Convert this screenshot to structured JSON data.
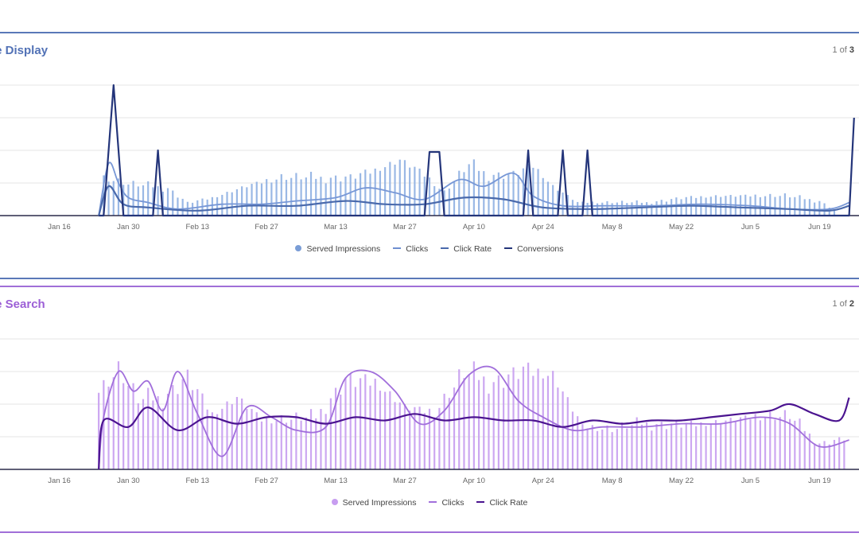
{
  "panels": [
    {
      "title": "le Display",
      "pager": {
        "current": "1",
        "sep": " of ",
        "total": "3"
      },
      "legend": [
        {
          "label": "Served Impressions",
          "kind": "dot",
          "color": "#7a9dd6"
        },
        {
          "label": "Clicks",
          "kind": "dash",
          "color": "#6f8fd0"
        },
        {
          "label": "Click Rate",
          "kind": "dash",
          "color": "#4a6aac"
        },
        {
          "label": "Conversions",
          "kind": "dash",
          "color": "#24357a"
        }
      ]
    },
    {
      "title": "le Search",
      "pager": {
        "current": "1",
        "sep": " of ",
        "total": "2"
      },
      "legend": [
        {
          "label": "Served Impressions",
          "kind": "dot",
          "color": "#c79df0"
        },
        {
          "label": "Clicks",
          "kind": "dash",
          "color": "#a16fdb"
        },
        {
          "label": "Click Rate",
          "kind": "dash",
          "color": "#4b1490"
        }
      ]
    }
  ],
  "chart_data": [
    {
      "type": "bar",
      "title": "le Display",
      "x_ticks": [
        "Jan 16",
        "Jan 30",
        "Feb 13",
        "Feb 27",
        "Mar 13",
        "Mar 27",
        "Apr 10",
        "Apr 24",
        "May 8",
        "May 22",
        "Jun 5",
        "Jun 19"
      ],
      "ylim": [
        0,
        4
      ],
      "grid": true,
      "legend_position": "bottom",
      "series": [
        {
          "name": "Served Impressions",
          "type": "bar",
          "color": "#8fb0e2",
          "points": [
            [
              21,
              1.15
            ],
            [
              26,
              0.95
            ],
            [
              34,
              0.85
            ],
            [
              38,
              0.4
            ],
            [
              43,
              0.55
            ],
            [
              50,
              0.9
            ],
            [
              57,
              1.15
            ],
            [
              64,
              1.15
            ],
            [
              71,
              1.2
            ],
            [
              76,
              1.4
            ],
            [
              81,
              1.7
            ],
            [
              85,
              1.35
            ],
            [
              90,
              0.7
            ],
            [
              95,
              1.55
            ],
            [
              99,
              1.25
            ],
            [
              104,
              1.3
            ],
            [
              108,
              1.55
            ],
            [
              112,
              0.9
            ],
            [
              117,
              0.4
            ],
            [
              124,
              0.4
            ],
            [
              131,
              0.4
            ],
            [
              138,
              0.55
            ],
            [
              145,
              0.6
            ],
            [
              152,
              0.6
            ],
            [
              159,
              0.6
            ],
            [
              166,
              0.45
            ],
            [
              170,
              0.1
            ]
          ]
        },
        {
          "name": "Clicks",
          "type": "line",
          "color": "#7797d6",
          "points": [
            [
              20,
              0
            ],
            [
              22,
              1.6
            ],
            [
              24,
              1.0
            ],
            [
              26,
              0.55
            ],
            [
              30,
              0.4
            ],
            [
              36,
              0.2
            ],
            [
              45,
              0.35
            ],
            [
              53,
              0.35
            ],
            [
              60,
              0.45
            ],
            [
              68,
              0.55
            ],
            [
              74,
              0.85
            ],
            [
              80,
              0.7
            ],
            [
              86,
              0.5
            ],
            [
              93,
              1.1
            ],
            [
              98,
              0.9
            ],
            [
              104,
              1.3
            ],
            [
              108,
              0.6
            ],
            [
              114,
              0.3
            ],
            [
              122,
              0.3
            ],
            [
              132,
              0.3
            ],
            [
              142,
              0.35
            ],
            [
              152,
              0.3
            ],
            [
              160,
              0.2
            ],
            [
              168,
              0.2
            ],
            [
              172,
              0.4
            ]
          ]
        },
        {
          "name": "Click Rate",
          "type": "line",
          "color": "#4a6aac",
          "points": [
            [
              20,
              0
            ],
            [
              22,
              0.9
            ],
            [
              25,
              0.35
            ],
            [
              30,
              0.25
            ],
            [
              40,
              0.15
            ],
            [
              50,
              0.3
            ],
            [
              60,
              0.3
            ],
            [
              70,
              0.45
            ],
            [
              78,
              0.35
            ],
            [
              86,
              0.35
            ],
            [
              94,
              0.55
            ],
            [
              102,
              0.5
            ],
            [
              110,
              0.25
            ],
            [
              120,
              0.2
            ],
            [
              130,
              0.25
            ],
            [
              140,
              0.3
            ],
            [
              150,
              0.25
            ],
            [
              160,
              0.2
            ],
            [
              168,
              0.15
            ],
            [
              172,
              0.3
            ]
          ]
        },
        {
          "name": "Conversions",
          "type": "line",
          "color": "#24357a",
          "points": [
            [
              20,
              0
            ],
            [
              21,
              0
            ],
            [
              23,
              4.0
            ],
            [
              25,
              0
            ],
            [
              31,
              0
            ],
            [
              32,
              2.0
            ],
            [
              33,
              0
            ],
            [
              86,
              0
            ],
            [
              87,
              1.95
            ],
            [
              89,
              1.95
            ],
            [
              90,
              0
            ],
            [
              106,
              0
            ],
            [
              107,
              2.0
            ],
            [
              108,
              0
            ],
            [
              113,
              0
            ],
            [
              114,
              2.0
            ],
            [
              115,
              0
            ],
            [
              118,
              0
            ],
            [
              119,
              2.0
            ],
            [
              120,
              0
            ],
            [
              172,
              0
            ],
            [
              173,
              3.0
            ]
          ]
        }
      ]
    },
    {
      "type": "bar",
      "title": "le Search",
      "x_ticks": [
        "Jan 16",
        "Jan 30",
        "Feb 13",
        "Feb 27",
        "Mar 13",
        "Mar 27",
        "Apr 10",
        "Apr 24",
        "May 8",
        "May 22",
        "Jun 5",
        "Jun 19"
      ],
      "ylim": [
        0,
        4
      ],
      "grid": true,
      "legend_position": "bottom",
      "series": [
        {
          "name": "Served Impressions",
          "type": "bar",
          "color": "#c79df0",
          "points": [
            [
              20,
              2.4
            ],
            [
              24,
              3.0
            ],
            [
              28,
              2.1
            ],
            [
              33,
              2.2
            ],
            [
              38,
              2.9
            ],
            [
              43,
              1.7
            ],
            [
              48,
              2.2
            ],
            [
              53,
              1.5
            ],
            [
              58,
              1.5
            ],
            [
              64,
              1.6
            ],
            [
              70,
              2.8
            ],
            [
              76,
              2.7
            ],
            [
              82,
              1.9
            ],
            [
              88,
              1.7
            ],
            [
              94,
              2.9
            ],
            [
              100,
              2.7
            ],
            [
              106,
              3.1
            ],
            [
              112,
              2.9
            ],
            [
              118,
              1.3
            ],
            [
              124,
              1.2
            ],
            [
              130,
              1.4
            ],
            [
              136,
              1.4
            ],
            [
              142,
              1.4
            ],
            [
              148,
              1.5
            ],
            [
              154,
              1.6
            ],
            [
              160,
              1.6
            ],
            [
              166,
              0.8
            ],
            [
              172,
              1.0
            ]
          ]
        },
        {
          "name": "Clicks",
          "type": "line",
          "color": "#a16fdb",
          "points": [
            [
              20,
              0
            ],
            [
              21,
              1.6
            ],
            [
              24,
              3.0
            ],
            [
              27,
              2.4
            ],
            [
              30,
              2.7
            ],
            [
              33,
              1.8
            ],
            [
              36,
              3.0
            ],
            [
              40,
              1.7
            ],
            [
              45,
              0.4
            ],
            [
              50,
              1.9
            ],
            [
              55,
              1.6
            ],
            [
              60,
              1.2
            ],
            [
              66,
              1.3
            ],
            [
              70,
              2.8
            ],
            [
              75,
              3.0
            ],
            [
              80,
              2.4
            ],
            [
              85,
              1.4
            ],
            [
              90,
              1.8
            ],
            [
              95,
              2.9
            ],
            [
              100,
              3.1
            ],
            [
              105,
              2.1
            ],
            [
              110,
              1.6
            ],
            [
              116,
              1.2
            ],
            [
              122,
              1.3
            ],
            [
              130,
              1.3
            ],
            [
              138,
              1.4
            ],
            [
              146,
              1.4
            ],
            [
              154,
              1.6
            ],
            [
              160,
              1.4
            ],
            [
              166,
              0.7
            ],
            [
              172,
              0.9
            ]
          ]
        },
        {
          "name": "Click Rate",
          "type": "line",
          "color": "#4b1490",
          "points": [
            [
              20,
              0
            ],
            [
              21,
              1.5
            ],
            [
              26,
              1.3
            ],
            [
              30,
              1.9
            ],
            [
              36,
              1.2
            ],
            [
              42,
              1.6
            ],
            [
              48,
              1.4
            ],
            [
              54,
              1.6
            ],
            [
              60,
              1.6
            ],
            [
              66,
              1.4
            ],
            [
              72,
              1.6
            ],
            [
              78,
              1.5
            ],
            [
              84,
              1.7
            ],
            [
              90,
              1.5
            ],
            [
              96,
              1.6
            ],
            [
              102,
              1.5
            ],
            [
              108,
              1.5
            ],
            [
              114,
              1.3
            ],
            [
              120,
              1.5
            ],
            [
              126,
              1.4
            ],
            [
              132,
              1.5
            ],
            [
              138,
              1.5
            ],
            [
              144,
              1.6
            ],
            [
              150,
              1.7
            ],
            [
              156,
              1.8
            ],
            [
              160,
              2.0
            ],
            [
              165,
              1.7
            ],
            [
              170,
              1.5
            ],
            [
              172,
              2.2
            ]
          ]
        }
      ]
    }
  ]
}
